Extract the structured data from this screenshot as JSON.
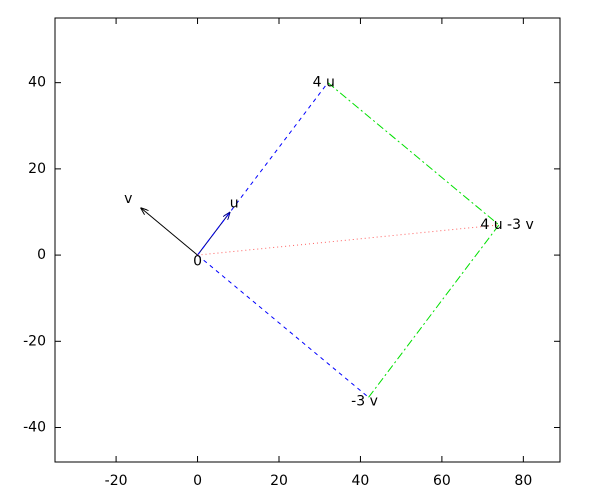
{
  "chart_data": {
    "type": "vector",
    "xlim": [
      -35,
      89
    ],
    "ylim": [
      -48,
      55
    ],
    "xticks": [
      -20,
      0,
      20,
      40,
      60,
      80
    ],
    "yticks": [
      -40,
      -20,
      0,
      20,
      40
    ],
    "segments": [
      {
        "x": [
          0,
          8
        ],
        "y": [
          0,
          10
        ],
        "color": "#000080",
        "style": "solid",
        "arrow": true
      },
      {
        "x": [
          0,
          -14
        ],
        "y": [
          0,
          11
        ],
        "color": "#000000",
        "style": "solid",
        "arrow": true
      },
      {
        "x": [
          0,
          32
        ],
        "y": [
          0,
          40
        ],
        "color": "#0000ff",
        "style": "dashed",
        "arrow": false
      },
      {
        "x": [
          0,
          42
        ],
        "y": [
          0,
          -33
        ],
        "color": "#0000ff",
        "style": "dashed",
        "arrow": false
      },
      {
        "x": [
          32,
          74
        ],
        "y": [
          40,
          7
        ],
        "color": "#00e000",
        "style": "dashdot",
        "arrow": false
      },
      {
        "x": [
          42,
          74
        ],
        "y": [
          -33,
          7
        ],
        "color": "#00e000",
        "style": "dashdot",
        "arrow": false
      },
      {
        "x": [
          0,
          74
        ],
        "y": [
          0,
          7
        ],
        "color": "#ff6060",
        "style": "dotted",
        "arrow": false
      }
    ],
    "annotations": [
      {
        "text": "0",
        "x": 0,
        "y": -1.5
      },
      {
        "text": "u",
        "x": 9,
        "y": 12
      },
      {
        "text": "v",
        "x": -17,
        "y": 13
      },
      {
        "text": "4 u",
        "x": 31,
        "y": 40
      },
      {
        "text": "-3 v",
        "x": 41,
        "y": -34
      },
      {
        "text": "4 u -3 v",
        "x": 76,
        "y": 7
      }
    ]
  }
}
